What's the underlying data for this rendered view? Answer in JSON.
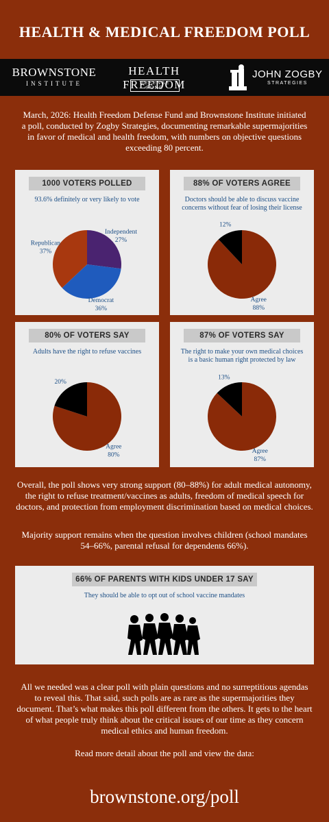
{
  "header": {
    "title": "HEALTH & MEDICAL FREEDOM POLL"
  },
  "logos": [
    {
      "name": "BROWNSTONE",
      "tagline": "INSTITUTE"
    },
    {
      "name": "HEALTH FREEDOM",
      "tagline": "DEFENSE FUND"
    },
    {
      "name": "JOHN ZOGBY",
      "tagline": "STRATEGIES"
    }
  ],
  "intro": "March, 2026: Health Freedom Defense Fund and Brownstone Institute initiated a poll, conducted by Zogby Strategies, documenting remarkable supermajorities in favor of medical and health freedom, with numbers on objective questions exceeding 80 percent.",
  "chart_data": [
    {
      "type": "pie",
      "title": "1000 VOTERS POLLED",
      "subtitle": "93.6% definitely or very likely to vote",
      "categories": [
        "Independent",
        "Democrat",
        "Republican"
      ],
      "values": [
        27,
        36,
        37
      ],
      "value_labels": [
        "27%",
        "36%",
        "37%"
      ],
      "colors": [
        "#4a2370",
        "#1f5bbd",
        "#a8380f"
      ]
    },
    {
      "type": "pie",
      "title": "88% OF VOTERS AGREE",
      "subtitle": "Doctors should be able to discuss vaccine concerns without fear of losing their license",
      "categories": [
        "Agree",
        null
      ],
      "values": [
        88,
        12
      ],
      "value_labels": [
        "88%",
        "12%"
      ],
      "colors": [
        "#8a2a08",
        "#000000"
      ]
    },
    {
      "type": "pie",
      "title": "80% OF VOTERS SAY",
      "subtitle": "Adults have the right to refuse vaccines",
      "categories": [
        "Agree",
        null
      ],
      "values": [
        80,
        20
      ],
      "value_labels": [
        "80%",
        "20%"
      ],
      "colors": [
        "#8a2a08",
        "#000000"
      ]
    },
    {
      "type": "pie",
      "title": "87% OF VOTERS SAY",
      "subtitle": "The right to make your own medical choices is a basic human right protected by law",
      "categories": [
        "Agree",
        null
      ],
      "values": [
        87,
        13
      ],
      "value_labels": [
        "87%",
        "13%"
      ],
      "colors": [
        "#8a2a08",
        "#000000"
      ]
    }
  ],
  "summary": [
    "Overall, the poll shows very strong support (80–88%) for adult medical autonomy, the right to refuse treatment/vaccines as adults, freedom of medical speech for doctors, and protection from employment discrimination based on medical choices.",
    "Majority support remains when the question involves children (school mandates 54–66%, parental refusal for dependents 66%)."
  ],
  "parents_panel": {
    "title": "66% OF PARENTS WITH KIDS UNDER 17 SAY",
    "subtitle": "They should be able to opt out of school vaccine mandates"
  },
  "closing": {
    "text": "All we needed was a clear poll with plain questions and no surreptitious agendas to reveal this. That said, such polls are as rare as the supermajorities they document. That’s what makes this poll different from the others. It gets to the heart of what people truly think about the critical issues of our time as they concern medical ethics and human freedom.",
    "cta": "Read more detail about the poll and view the data:",
    "link": "brownstone.org/poll"
  }
}
